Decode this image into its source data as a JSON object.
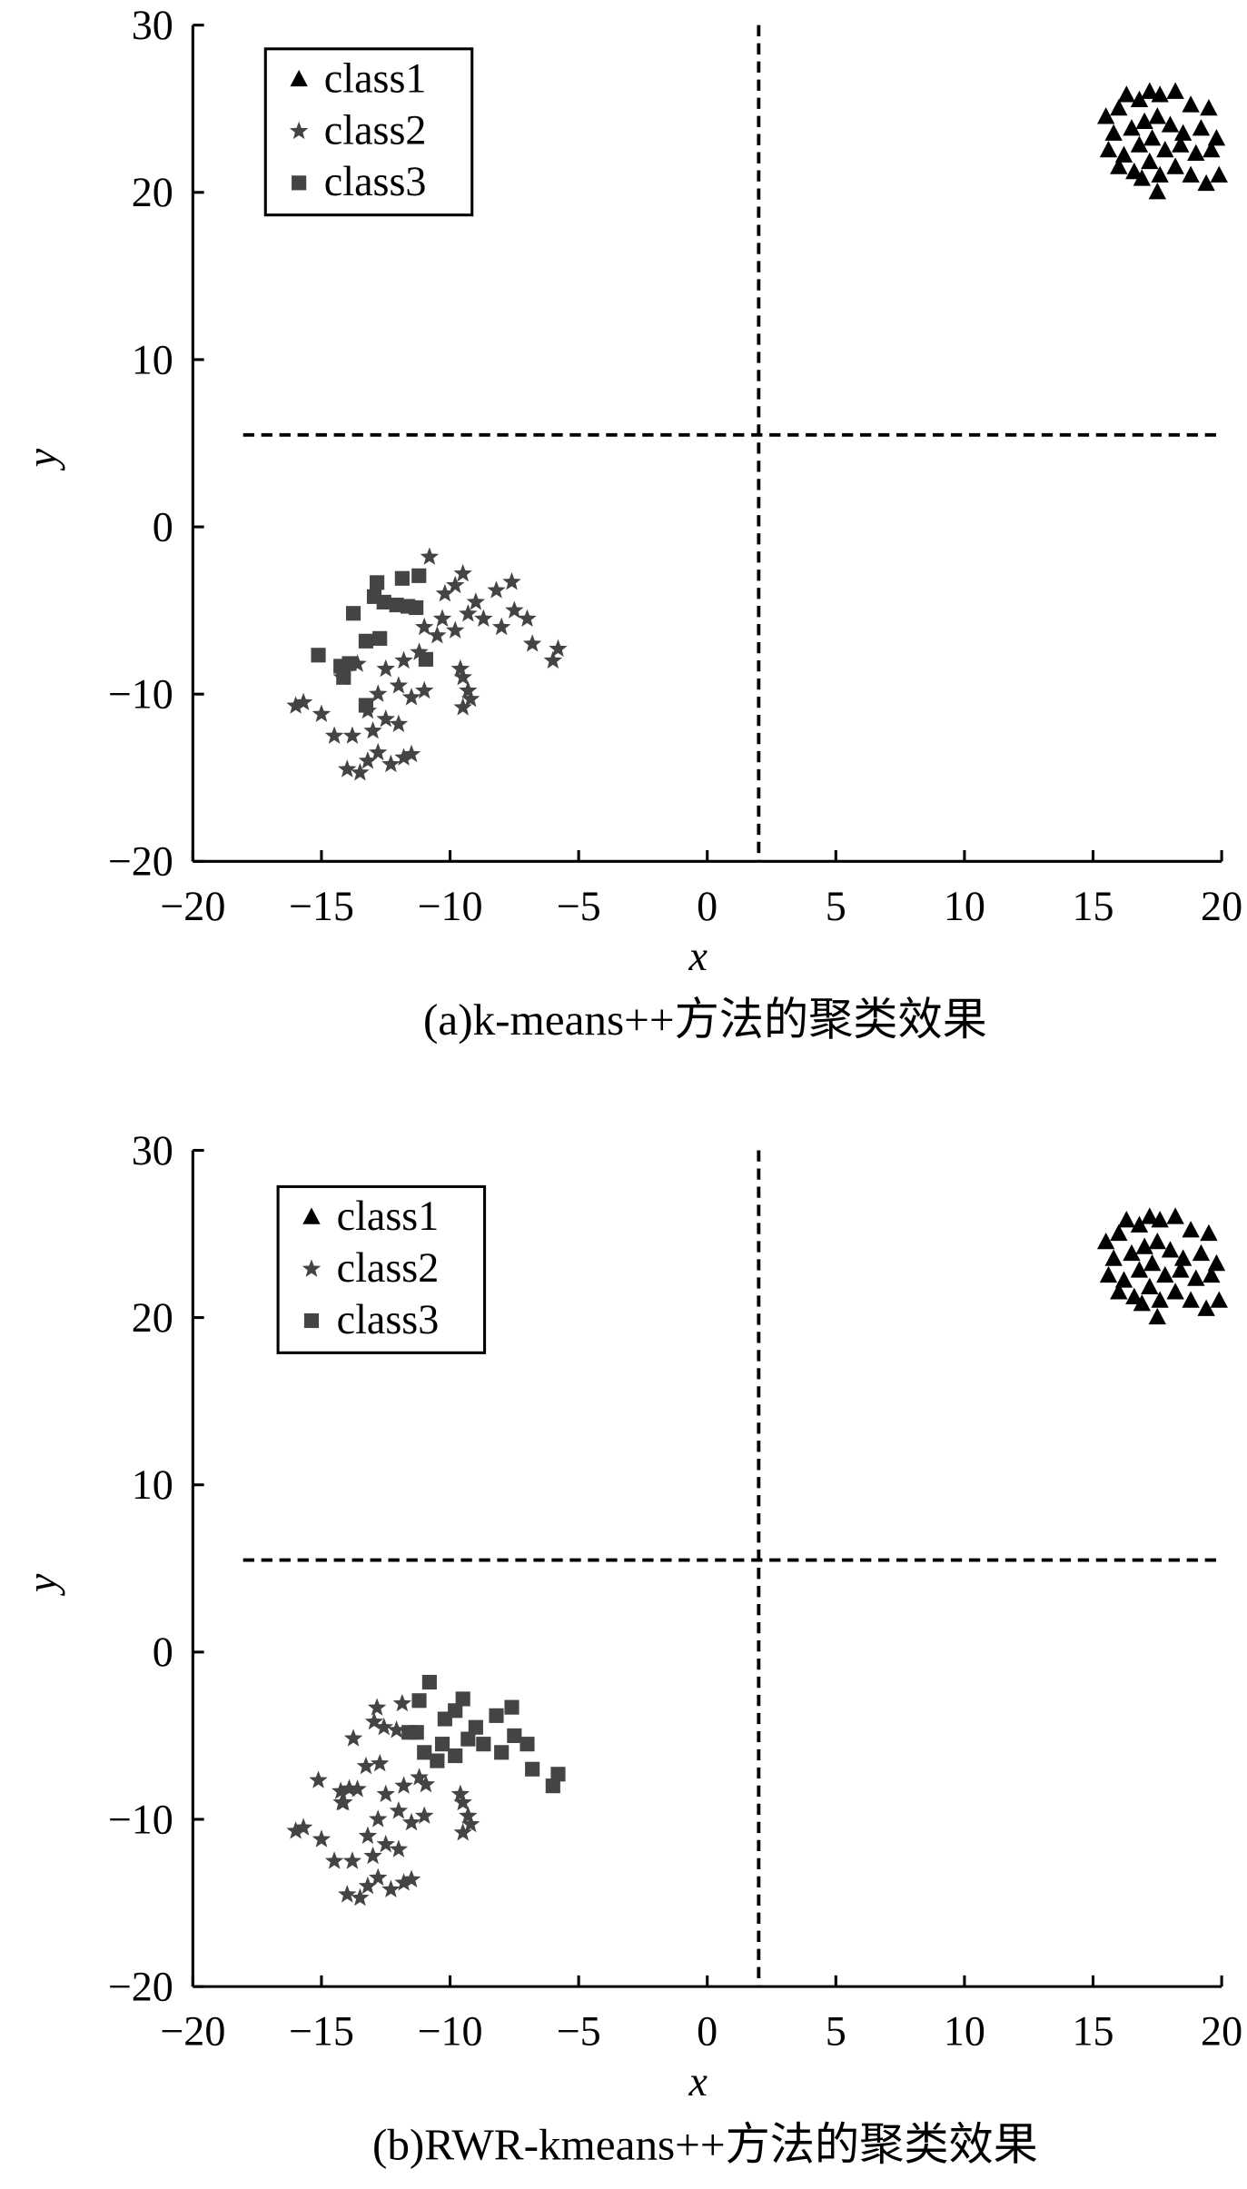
{
  "chart_data": [
    {
      "type": "scatter",
      "title": "(a)k-means++方法的聚类效果",
      "xlabel": "x",
      "ylabel": "y",
      "xlim": [
        -20,
        20
      ],
      "ylim": [
        -20,
        30
      ],
      "xticks": [
        {
          "value": -20,
          "label": "−20"
        },
        {
          "value": -15,
          "label": "−15"
        },
        {
          "value": -10,
          "label": "−10"
        },
        {
          "value": -5,
          "label": "−5"
        },
        0,
        5,
        10,
        15,
        20
      ],
      "yticks": [
        {
          "value": -20,
          "label": "−20"
        },
        {
          "value": -10,
          "label": "−10"
        },
        0,
        10,
        20,
        30
      ],
      "vlines": [
        2
      ],
      "hlines": [
        5.5
      ],
      "legend": "upper left",
      "series": [
        {
          "name": "class1",
          "color": "#000000",
          "marker": "triangle",
          "x": [
            15.5,
            16,
            16.3,
            16.8,
            17.2,
            17.6,
            18.2,
            18.8,
            19.5,
            15.8,
            16.5,
            17,
            17.5,
            18,
            18.5,
            19.2,
            19.8,
            15.6,
            16.2,
            16.8,
            17.3,
            17.8,
            18.4,
            19,
            19.6,
            16,
            16.6,
            17.2,
            17.6,
            18.2,
            18.8,
            19.4,
            17.5,
            16.9,
            19.9
          ],
          "y": [
            24.5,
            25,
            25.8,
            25.5,
            26,
            25.8,
            26,
            25.2,
            25,
            23.5,
            23.8,
            24.2,
            24.5,
            24,
            23.5,
            23.8,
            23.2,
            22.5,
            22.2,
            22.8,
            23.2,
            22.5,
            22.8,
            22.3,
            22.5,
            21.5,
            21.2,
            21.8,
            21,
            21.5,
            21,
            20.5,
            20,
            20.8,
            21
          ]
        },
        {
          "name": "class2",
          "color": "#444444",
          "marker": "star",
          "x": [
            -16,
            -15.7,
            -15,
            -14.5,
            -14,
            -13.5,
            -13.2,
            -12.8,
            -12.3,
            -11.8,
            -11.5,
            -13.8,
            -13,
            -12.5,
            -12,
            -13.2,
            -12.8,
            -12,
            -11.5,
            -11,
            -12.5,
            -11.8,
            -11.2,
            -10.5,
            -10.8,
            -10.2,
            -9.8,
            -9.5,
            -9,
            -8.7,
            -8.2,
            -7.6,
            -8,
            -7.5,
            -7,
            -6.8,
            -6,
            -5.8,
            -9.8,
            -9.3,
            -9.5,
            -9.3,
            -9.5,
            -9.2,
            -9.6,
            -10.3,
            -11,
            -14.2,
            -13.6
          ],
          "y": [
            -10.7,
            -10.5,
            -11.2,
            -12.5,
            -14.5,
            -14.7,
            -14,
            -13.5,
            -14.2,
            -13.8,
            -13.6,
            -12.5,
            -12.2,
            -11.5,
            -11.8,
            -11,
            -10,
            -9.5,
            -10.2,
            -9.8,
            -8.5,
            -8,
            -7.5,
            -6.5,
            -1.8,
            -4,
            -3.5,
            -2.8,
            -4.5,
            -5.5,
            -3.8,
            -3.3,
            -6,
            -5,
            -5.5,
            -7,
            -8,
            -7.3,
            -6.2,
            -5.2,
            -9,
            -9.8,
            -10.8,
            -10.3,
            -8.5,
            -5.5,
            -6,
            -9,
            -8.2
          ]
        },
        {
          "name": "class3",
          "color": "#444444",
          "marker": "square",
          "x": [
            -12.84,
            -11.86,
            -11.21,
            -12.95,
            -12.57,
            -12.08,
            -11.64,
            -11.32,
            -13.76,
            -15.12,
            -14.25,
            -14.14,
            -13.27,
            -12.73,
            -10.94,
            -13.27,
            -13.92
          ],
          "y": [
            -3.33,
            -3.08,
            -2.92,
            -4.17,
            -4.5,
            -4.67,
            -4.75,
            -4.83,
            -5.17,
            -7.67,
            -8.33,
            -9,
            -6.83,
            -6.67,
            -7.92,
            -10.67,
            -8.17
          ]
        }
      ]
    },
    {
      "type": "scatter",
      "title": "(b)RWR-kmeans++方法的聚类效果",
      "xlabel": "x",
      "ylabel": "y",
      "xlim": [
        -20,
        20
      ],
      "ylim": [
        -20,
        30
      ],
      "xticks": [
        {
          "value": -20,
          "label": "−20"
        },
        {
          "value": -15,
          "label": "−15"
        },
        {
          "value": -10,
          "label": "−10"
        },
        {
          "value": -5,
          "label": "−5"
        },
        0,
        5,
        10,
        15,
        20
      ],
      "yticks": [
        {
          "value": -20,
          "label": "−20"
        },
        {
          "value": -10,
          "label": "−10"
        },
        0,
        10,
        20,
        30
      ],
      "vlines": [
        2
      ],
      "hlines": [
        5.5
      ],
      "legend": "upper left",
      "series": [
        {
          "name": "class1",
          "color": "#000000",
          "marker": "triangle",
          "x": [
            15.5,
            16,
            16.3,
            16.8,
            17.2,
            17.6,
            18.2,
            18.8,
            19.5,
            15.8,
            16.5,
            17,
            17.5,
            18,
            18.5,
            19.2,
            19.8,
            15.6,
            16.2,
            16.8,
            17.3,
            17.8,
            18.4,
            19,
            19.6,
            16,
            16.6,
            17.2,
            17.6,
            18.2,
            18.8,
            19.4,
            17.5,
            16.9,
            19.9
          ],
          "y": [
            24.5,
            25,
            25.8,
            25.5,
            26,
            25.8,
            26,
            25.2,
            25,
            23.5,
            23.8,
            24.2,
            24.5,
            24,
            23.5,
            23.8,
            23.2,
            22.5,
            22.2,
            22.8,
            23.2,
            22.5,
            22.8,
            22.3,
            22.5,
            21.5,
            21.2,
            21.8,
            21,
            21.5,
            21,
            20.5,
            20,
            20.8,
            21
          ]
        },
        {
          "name": "class2",
          "color": "#444444",
          "marker": "star",
          "x": [
            -16,
            -15.7,
            -15,
            -14.5,
            -14,
            -13.5,
            -13.2,
            -12.8,
            -12.3,
            -11.8,
            -11.5,
            -13.8,
            -13,
            -12.5,
            -12,
            -13.2,
            -12.8,
            -12,
            -11.5,
            -11,
            -12.5,
            -11.8,
            -11.2,
            -9.5,
            -9.3,
            -9.5,
            -9.2,
            -9.6,
            -14.2,
            -13.6,
            -12.84,
            -11.86,
            -12.95,
            -12.57,
            -12.08,
            -13.76,
            -15.12,
            -14.25,
            -14.14,
            -13.27,
            -12.73,
            -10.94,
            -13.92
          ],
          "y": [
            -10.7,
            -10.5,
            -11.2,
            -12.5,
            -14.5,
            -14.7,
            -14,
            -13.5,
            -14.2,
            -13.8,
            -13.6,
            -12.5,
            -12.2,
            -11.5,
            -11.8,
            -11,
            -10,
            -9.5,
            -10.2,
            -9.8,
            -8.5,
            -8,
            -7.5,
            -9,
            -9.8,
            -10.8,
            -10.3,
            -8.5,
            -9,
            -8.2,
            -3.33,
            -3.08,
            -4.17,
            -4.5,
            -4.67,
            -5.17,
            -7.67,
            -8.33,
            -9,
            -6.83,
            -6.67,
            -7.92,
            -8.17
          ]
        },
        {
          "name": "class3",
          "color": "#444444",
          "marker": "square",
          "x": [
            -10.5,
            -10.8,
            -10.2,
            -9.8,
            -9.5,
            -9,
            -8.7,
            -8.2,
            -7.6,
            -8,
            -7.5,
            -7,
            -6.8,
            -6,
            -5.8,
            -9.8,
            -9.3,
            -10.3,
            -11,
            -11.2,
            -11.6,
            -11.3
          ],
          "y": [
            -6.5,
            -1.8,
            -4,
            -3.5,
            -2.8,
            -4.5,
            -5.5,
            -3.8,
            -3.3,
            -6,
            -5,
            -5.5,
            -7,
            -8,
            -7.3,
            -6.2,
            -5.2,
            -5.5,
            -6,
            -2.9,
            -4.8,
            -4.8
          ]
        }
      ]
    }
  ]
}
